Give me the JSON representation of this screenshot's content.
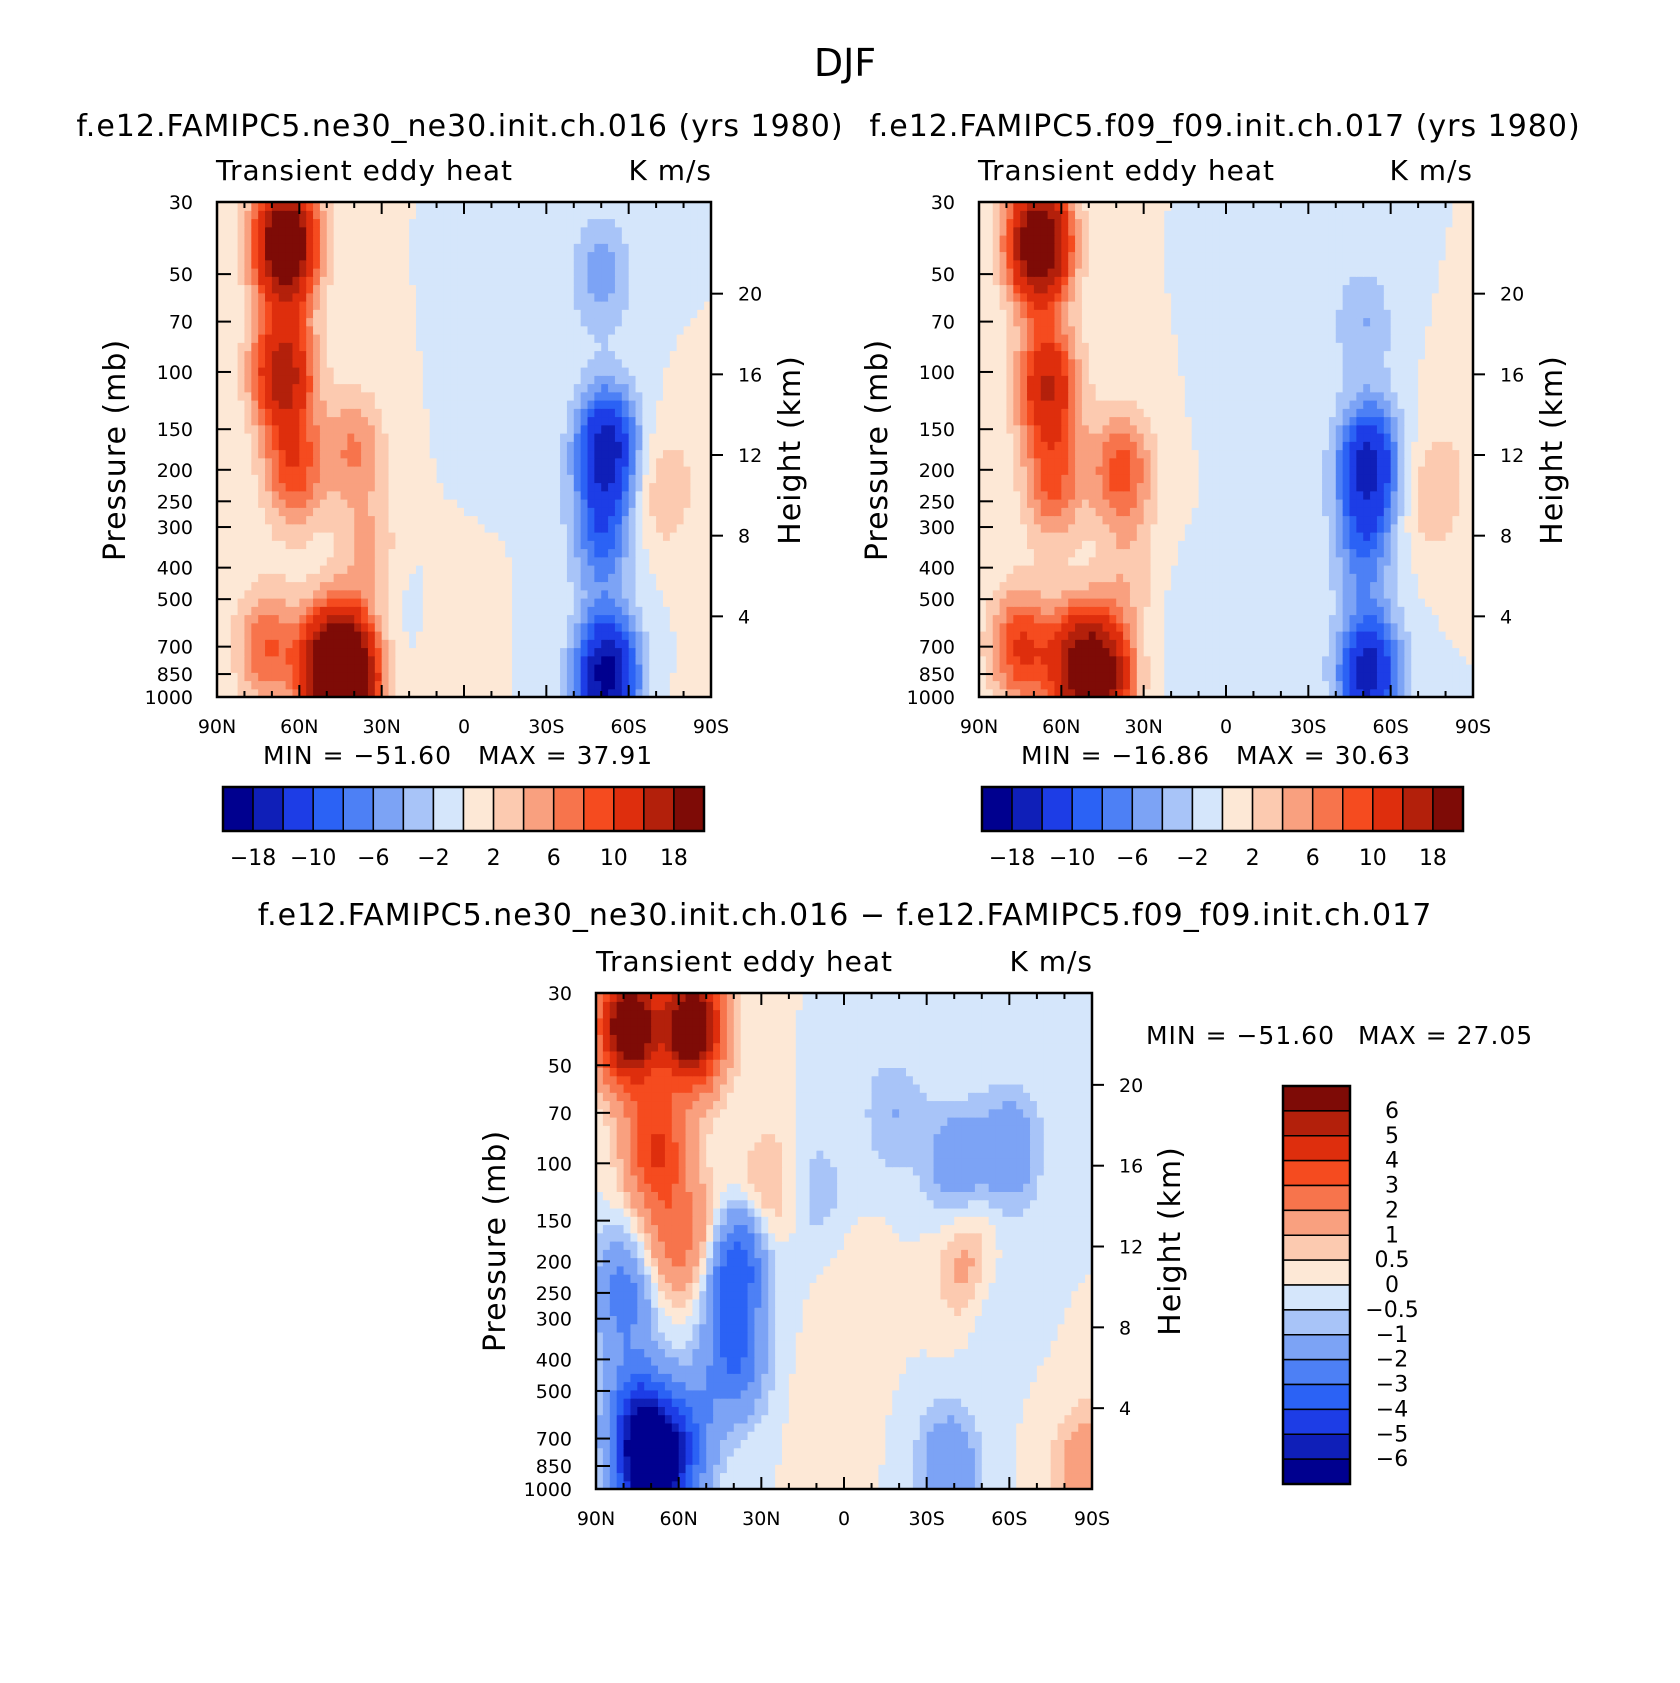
{
  "figure_title": "DJF",
  "colors": {
    "main_levels": [
      "#00008f",
      "#0f1fb8",
      "#1d3de6",
      "#2b62f5",
      "#4d80f5",
      "#7ca3f5",
      "#a8c4f8",
      "#d5e6fb",
      "#fde8d6",
      "#fccab0",
      "#f9a07f",
      "#f7744c",
      "#f54b1f",
      "#de2e0d",
      "#b3200b",
      "#7e0b06"
    ],
    "diff_levels": [
      "#7e0b06",
      "#b3200b",
      "#de2e0d",
      "#f54b1f",
      "#f7744c",
      "#f9a07f",
      "#fccab0",
      "#fde8d6",
      "#d5e6fb",
      "#a8c4f8",
      "#7ca3f5",
      "#4d80f5",
      "#2b62f5",
      "#1d3de6",
      "#0f1fb8",
      "#00008f"
    ]
  },
  "chart_data": [
    {
      "id": "panel-ne30",
      "type": "heatmap",
      "title": "f.e12.FAMIPC5.ne30_ne30.init.ch.016 (yrs 1980)",
      "left_label": "Transient eddy heat",
      "right_label": "K m/s",
      "ylabel": "Pressure (mb)",
      "y2label": "Height (km)",
      "x_ticks": [
        "90N",
        "60N",
        "30N",
        "0",
        "30S",
        "60S",
        "90S"
      ],
      "y_ticks": [
        "30",
        "50",
        "70",
        "100",
        "150",
        "200",
        "250",
        "300",
        "400",
        "500",
        "700",
        "850",
        "1000"
      ],
      "y2_ticks": [
        "20",
        "16",
        "12",
        "8",
        "4"
      ],
      "xlim": [
        90,
        -90
      ],
      "ylim": [
        1000,
        30
      ],
      "min_label": "MIN = −51.60",
      "max_label": "MAX = 37.91",
      "colorbar_ticks": [
        "−18",
        "−10",
        "−6",
        "−2",
        "2",
        "6",
        "10",
        "18"
      ],
      "features": [
        {
          "lat": 65,
          "p": 40,
          "value": 26
        },
        {
          "lat": 66,
          "p": 100,
          "value": 16
        },
        {
          "lat": 62,
          "p": 200,
          "value": 9
        },
        {
          "lat": 40,
          "p": 170,
          "value": 6
        },
        {
          "lat": 50,
          "p": 800,
          "value": 16
        },
        {
          "lat": 42,
          "p": 860,
          "value": 24
        },
        {
          "lat": 72,
          "p": 700,
          "value": 8
        },
        {
          "lat": 35,
          "p": 350,
          "value": 4
        },
        {
          "lat": 10,
          "p": 600,
          "value": 1
        },
        {
          "lat": -52,
          "p": 170,
          "value": -16
        },
        {
          "lat": -50,
          "p": 320,
          "value": -8
        },
        {
          "lat": -52,
          "p": 860,
          "value": -20
        },
        {
          "lat": -50,
          "p": 50,
          "value": -5
        },
        {
          "lat": -73,
          "p": 230,
          "value": 4
        },
        {
          "lat": -10,
          "p": 110,
          "value": -1.5
        },
        {
          "lat": 20,
          "p": 550,
          "value": -1
        },
        {
          "lat": -88,
          "p": 900,
          "value": 0.5
        }
      ]
    },
    {
      "id": "panel-f09",
      "type": "heatmap",
      "title": "f.e12.FAMIPC5.f09_f09.init.ch.017 (yrs 1980)",
      "left_label": "Transient eddy heat",
      "right_label": "K m/s",
      "ylabel": "Pressure (mb)",
      "y2label": "Height (km)",
      "x_ticks": [
        "90N",
        "60N",
        "30N",
        "0",
        "30S",
        "60S",
        "90S"
      ],
      "y_ticks": [
        "30",
        "50",
        "70",
        "100",
        "150",
        "200",
        "250",
        "300",
        "400",
        "500",
        "700",
        "850",
        "1000"
      ],
      "y2_ticks": [
        "20",
        "16",
        "12",
        "8",
        "4"
      ],
      "xlim": [
        90,
        -90
      ],
      "ylim": [
        1000,
        30
      ],
      "min_label": "MIN = −16.86",
      "max_label": "MAX = 30.63",
      "colorbar_ticks": [
        "−18",
        "−10",
        "−6",
        "−2",
        "2",
        "6",
        "10",
        "18"
      ],
      "features": [
        {
          "lat": 68,
          "p": 40,
          "value": 26
        },
        {
          "lat": 65,
          "p": 110,
          "value": 14
        },
        {
          "lat": 63,
          "p": 220,
          "value": 8
        },
        {
          "lat": 38,
          "p": 200,
          "value": 9
        },
        {
          "lat": 55,
          "p": 800,
          "value": 14
        },
        {
          "lat": 45,
          "p": 860,
          "value": 18
        },
        {
          "lat": 75,
          "p": 700,
          "value": 10
        },
        {
          "lat": 35,
          "p": 420,
          "value": 3
        },
        {
          "lat": -52,
          "p": 190,
          "value": -15
        },
        {
          "lat": -50,
          "p": 340,
          "value": -7
        },
        {
          "lat": -52,
          "p": 840,
          "value": -16
        },
        {
          "lat": -50,
          "p": 70,
          "value": -4
        },
        {
          "lat": -75,
          "p": 240,
          "value": 4
        },
        {
          "lat": -7,
          "p": 110,
          "value": -1.2
        },
        {
          "lat": 15,
          "p": 600,
          "value": -1.2
        },
        {
          "lat": -88,
          "p": 130,
          "value": 1.5
        }
      ]
    },
    {
      "id": "panel-diff",
      "type": "heatmap",
      "title": "f.e12.FAMIPC5.ne30_ne30.init.ch.016 − f.e12.FAMIPC5.f09_f09.init.ch.017",
      "left_label": "Transient eddy heat",
      "right_label": "K m/s",
      "ylabel": "Pressure (mb)",
      "y2label": "Height (km)",
      "x_ticks": [
        "90N",
        "60N",
        "30N",
        "0",
        "30S",
        "60S",
        "90S"
      ],
      "y_ticks": [
        "30",
        "50",
        "70",
        "100",
        "150",
        "200",
        "250",
        "300",
        "400",
        "500",
        "700",
        "850",
        "1000"
      ],
      "y2_ticks": [
        "20",
        "16",
        "12",
        "8",
        "4"
      ],
      "xlim": [
        90,
        -90
      ],
      "ylim": [
        1000,
        30
      ],
      "min_label": "MIN = −51.60",
      "max_label": "MAX = 27.05",
      "colorbar_ticks": [
        "6",
        "5",
        "4",
        "3",
        "2",
        "1",
        "0.5",
        "0",
        "−0.5",
        "−1",
        "−2",
        "−3",
        "−4",
        "−5",
        "−6"
      ],
      "features": [
        {
          "lat": 78,
          "p": 38,
          "value": 8
        },
        {
          "lat": 55,
          "p": 38,
          "value": 8
        },
        {
          "lat": 68,
          "p": 90,
          "value": 4
        },
        {
          "lat": 62,
          "p": 170,
          "value": 2.2
        },
        {
          "lat": 48,
          "p": 170,
          "value": 1.6
        },
        {
          "lat": 80,
          "p": 250,
          "value": -2.5
        },
        {
          "lat": 75,
          "p": 600,
          "value": -4
        },
        {
          "lat": 70,
          "p": 900,
          "value": -7.5
        },
        {
          "lat": 40,
          "p": 200,
          "value": -4.5
        },
        {
          "lat": 40,
          "p": 400,
          "value": -3
        },
        {
          "lat": 58,
          "p": 700,
          "value": -3
        },
        {
          "lat": 28,
          "p": 120,
          "value": 1.2
        },
        {
          "lat": 10,
          "p": 120,
          "value": -0.8
        },
        {
          "lat": -5,
          "p": 260,
          "value": 0.5
        },
        {
          "lat": 5,
          "p": 600,
          "value": 0.5
        },
        {
          "lat": -18,
          "p": 70,
          "value": -1
        },
        {
          "lat": -40,
          "p": 100,
          "value": -1.6
        },
        {
          "lat": -60,
          "p": 90,
          "value": -1.8
        },
        {
          "lat": -45,
          "p": 210,
          "value": 1.6
        },
        {
          "lat": -52,
          "p": 260,
          "value": -0.9
        },
        {
          "lat": -38,
          "p": 860,
          "value": -2
        },
        {
          "lat": -88,
          "p": 880,
          "value": 2
        }
      ]
    }
  ]
}
